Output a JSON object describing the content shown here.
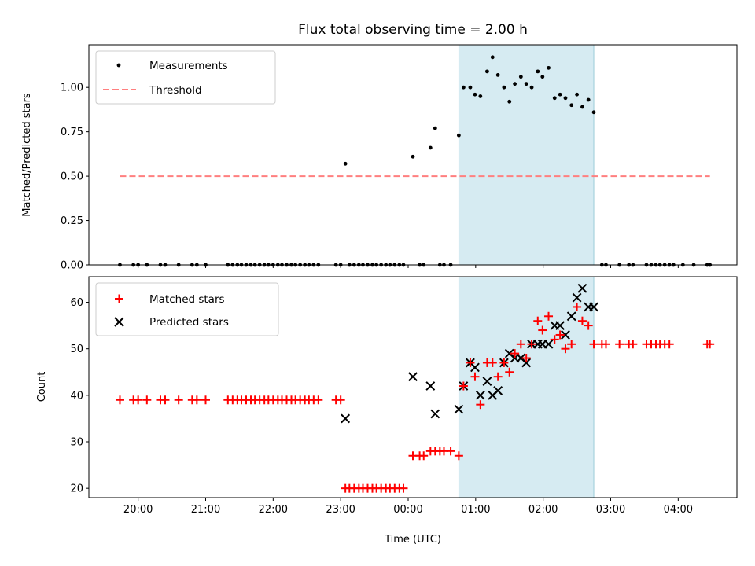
{
  "chart_data": [
    {
      "type": "scatter",
      "title": "Flux total observing time = 2.00 h",
      "ylabel": "Matched/Predicted stars",
      "xlabel": "",
      "x_unit": "hours since 00:00 UTC",
      "xlim": [
        -4.73,
        4.87
      ],
      "ylim": [
        0.0,
        1.24
      ],
      "yticks": [
        0.0,
        0.25,
        0.5,
        0.75,
        1.0
      ],
      "ytick_labels": [
        "0.00",
        "0.25",
        "0.50",
        "0.75",
        "1.00"
      ],
      "legend_position": "upper-left",
      "highlight_span": [
        0.75,
        2.75
      ],
      "highlight_color": "#add8e6",
      "series": [
        {
          "name": "Measurements",
          "marker": "dot",
          "color": "#000000",
          "points": [
            [
              -4.27,
              0.0
            ],
            [
              -4.07,
              0.0
            ],
            [
              -4.0,
              0.0
            ],
            [
              -3.87,
              0.0
            ],
            [
              -3.67,
              0.0
            ],
            [
              -3.6,
              0.0
            ],
            [
              -3.4,
              0.0
            ],
            [
              -3.2,
              0.0
            ],
            [
              -3.13,
              0.0
            ],
            [
              -3.0,
              0.0
            ],
            [
              -2.67,
              0.0
            ],
            [
              -2.6,
              0.0
            ],
            [
              -2.53,
              0.0
            ],
            [
              -2.47,
              0.0
            ],
            [
              -2.4,
              0.0
            ],
            [
              -2.33,
              0.0
            ],
            [
              -2.27,
              0.0
            ],
            [
              -2.2,
              0.0
            ],
            [
              -2.13,
              0.0
            ],
            [
              -2.07,
              0.0
            ],
            [
              -2.0,
              0.0
            ],
            [
              -1.93,
              0.0
            ],
            [
              -1.87,
              0.0
            ],
            [
              -1.8,
              0.0
            ],
            [
              -1.73,
              0.0
            ],
            [
              -1.67,
              0.0
            ],
            [
              -1.6,
              0.0
            ],
            [
              -1.53,
              0.0
            ],
            [
              -1.47,
              0.0
            ],
            [
              -1.4,
              0.0
            ],
            [
              -1.33,
              0.0
            ],
            [
              -1.07,
              0.0
            ],
            [
              -1.0,
              0.0
            ],
            [
              -0.93,
              0.57
            ],
            [
              -0.87,
              0.0
            ],
            [
              -0.8,
              0.0
            ],
            [
              -0.73,
              0.0
            ],
            [
              -0.67,
              0.0
            ],
            [
              -0.6,
              0.0
            ],
            [
              -0.53,
              0.0
            ],
            [
              -0.47,
              0.0
            ],
            [
              -0.4,
              0.0
            ],
            [
              -0.33,
              0.0
            ],
            [
              -0.27,
              0.0
            ],
            [
              -0.2,
              0.0
            ],
            [
              -0.13,
              0.0
            ],
            [
              -0.07,
              0.0
            ],
            [
              0.07,
              0.61
            ],
            [
              0.17,
              0.0
            ],
            [
              0.23,
              0.0
            ],
            [
              0.33,
              0.66
            ],
            [
              0.4,
              0.77
            ],
            [
              0.47,
              0.0
            ],
            [
              0.53,
              0.0
            ],
            [
              0.63,
              0.0
            ],
            [
              0.75,
              0.73
            ],
            [
              0.82,
              1.0
            ],
            [
              0.92,
              1.0
            ],
            [
              0.99,
              0.96
            ],
            [
              1.07,
              0.95
            ],
            [
              1.17,
              1.09
            ],
            [
              1.25,
              1.17
            ],
            [
              1.33,
              1.07
            ],
            [
              1.42,
              1.0
            ],
            [
              1.5,
              0.92
            ],
            [
              1.58,
              1.02
            ],
            [
              1.67,
              1.06
            ],
            [
              1.75,
              1.02
            ],
            [
              1.83,
              1.0
            ],
            [
              1.92,
              1.09
            ],
            [
              1.99,
              1.06
            ],
            [
              2.08,
              1.11
            ],
            [
              2.17,
              0.94
            ],
            [
              2.25,
              0.96
            ],
            [
              2.33,
              0.94
            ],
            [
              2.42,
              0.9
            ],
            [
              2.5,
              0.96
            ],
            [
              2.58,
              0.89
            ],
            [
              2.67,
              0.93
            ],
            [
              2.75,
              0.86
            ],
            [
              2.87,
              0.0
            ],
            [
              2.93,
              0.0
            ],
            [
              3.13,
              0.0
            ],
            [
              3.27,
              0.0
            ],
            [
              3.33,
              0.0
            ],
            [
              3.53,
              0.0
            ],
            [
              3.6,
              0.0
            ],
            [
              3.67,
              0.0
            ],
            [
              3.73,
              0.0
            ],
            [
              3.8,
              0.0
            ],
            [
              3.87,
              0.0
            ],
            [
              3.93,
              0.0
            ],
            [
              4.07,
              0.0
            ],
            [
              4.23,
              0.0
            ],
            [
              4.43,
              0.0
            ],
            [
              4.47,
              0.0
            ]
          ]
        },
        {
          "name": "Threshold",
          "marker": "dashed-line",
          "color": "#ff7f7f",
          "points": [
            [
              -4.27,
              0.5
            ],
            [
              4.47,
              0.5
            ]
          ]
        }
      ]
    },
    {
      "type": "scatter",
      "title": "",
      "ylabel": "Count",
      "xlabel": "Time (UTC)",
      "x_unit": "hours since 00:00 UTC",
      "xlim": [
        -4.73,
        4.87
      ],
      "ylim": [
        18.0,
        65.5
      ],
      "yticks": [
        20,
        30,
        40,
        50,
        60
      ],
      "ytick_labels": [
        "20",
        "30",
        "40",
        "50",
        "60"
      ],
      "xticks": [
        -4,
        -3,
        -2,
        -1,
        0,
        1,
        2,
        3,
        4
      ],
      "xtick_labels": [
        "20:00",
        "21:00",
        "22:00",
        "23:00",
        "00:00",
        "01:00",
        "02:00",
        "03:00",
        "04:00"
      ],
      "legend_position": "upper-left",
      "highlight_span": [
        0.75,
        2.75
      ],
      "highlight_color": "#add8e6",
      "series": [
        {
          "name": "Matched stars",
          "marker": "plus",
          "color": "#ff0000",
          "points": [
            [
              -4.27,
              39
            ],
            [
              -4.07,
              39
            ],
            [
              -4.0,
              39
            ],
            [
              -3.87,
              39
            ],
            [
              -3.67,
              39
            ],
            [
              -3.6,
              39
            ],
            [
              -3.4,
              39
            ],
            [
              -3.2,
              39
            ],
            [
              -3.13,
              39
            ],
            [
              -3.0,
              39
            ],
            [
              -2.67,
              39
            ],
            [
              -2.6,
              39
            ],
            [
              -2.53,
              39
            ],
            [
              -2.47,
              39
            ],
            [
              -2.4,
              39
            ],
            [
              -2.33,
              39
            ],
            [
              -2.27,
              39
            ],
            [
              -2.2,
              39
            ],
            [
              -2.13,
              39
            ],
            [
              -2.07,
              39
            ],
            [
              -2.0,
              39
            ],
            [
              -1.93,
              39
            ],
            [
              -1.87,
              39
            ],
            [
              -1.8,
              39
            ],
            [
              -1.73,
              39
            ],
            [
              -1.67,
              39
            ],
            [
              -1.6,
              39
            ],
            [
              -1.53,
              39
            ],
            [
              -1.47,
              39
            ],
            [
              -1.4,
              39
            ],
            [
              -1.33,
              39
            ],
            [
              -1.07,
              39
            ],
            [
              -1.0,
              39
            ],
            [
              -0.93,
              20
            ],
            [
              -0.87,
              20
            ],
            [
              -0.8,
              20
            ],
            [
              -0.73,
              20
            ],
            [
              -0.67,
              20
            ],
            [
              -0.6,
              20
            ],
            [
              -0.53,
              20
            ],
            [
              -0.47,
              20
            ],
            [
              -0.4,
              20
            ],
            [
              -0.33,
              20
            ],
            [
              -0.27,
              20
            ],
            [
              -0.2,
              20
            ],
            [
              -0.13,
              20
            ],
            [
              -0.07,
              20
            ],
            [
              0.07,
              27
            ],
            [
              0.17,
              27
            ],
            [
              0.23,
              27
            ],
            [
              0.33,
              28
            ],
            [
              0.4,
              28
            ],
            [
              0.47,
              28
            ],
            [
              0.53,
              28
            ],
            [
              0.63,
              28
            ],
            [
              0.75,
              27
            ],
            [
              0.82,
              42
            ],
            [
              0.92,
              47
            ],
            [
              0.99,
              44
            ],
            [
              1.07,
              38
            ],
            [
              1.17,
              47
            ],
            [
              1.25,
              47
            ],
            [
              1.33,
              44
            ],
            [
              1.42,
              47
            ],
            [
              1.5,
              45
            ],
            [
              1.58,
              49
            ],
            [
              1.67,
              51
            ],
            [
              1.75,
              48
            ],
            [
              1.83,
              51
            ],
            [
              1.92,
              56
            ],
            [
              1.99,
              54
            ],
            [
              2.08,
              57
            ],
            [
              2.17,
              52
            ],
            [
              2.25,
              53
            ],
            [
              2.33,
              50
            ],
            [
              2.42,
              51
            ],
            [
              2.5,
              59
            ],
            [
              2.58,
              56
            ],
            [
              2.67,
              55
            ],
            [
              2.75,
              51
            ],
            [
              2.87,
              51
            ],
            [
              2.93,
              51
            ],
            [
              3.13,
              51
            ],
            [
              3.27,
              51
            ],
            [
              3.33,
              51
            ],
            [
              3.53,
              51
            ],
            [
              3.6,
              51
            ],
            [
              3.67,
              51
            ],
            [
              3.73,
              51
            ],
            [
              3.8,
              51
            ],
            [
              3.87,
              51
            ],
            [
              4.43,
              51
            ],
            [
              4.47,
              51
            ]
          ]
        },
        {
          "name": "Predicted stars",
          "marker": "x",
          "color": "#000000",
          "points": [
            [
              -0.93,
              35
            ],
            [
              0.07,
              44
            ],
            [
              0.33,
              42
            ],
            [
              0.4,
              36
            ],
            [
              0.75,
              37
            ],
            [
              0.82,
              42
            ],
            [
              0.92,
              47
            ],
            [
              0.99,
              46
            ],
            [
              1.07,
              40
            ],
            [
              1.17,
              43
            ],
            [
              1.25,
              40
            ],
            [
              1.33,
              41
            ],
            [
              1.42,
              47
            ],
            [
              1.5,
              49
            ],
            [
              1.58,
              48
            ],
            [
              1.67,
              48
            ],
            [
              1.75,
              47
            ],
            [
              1.83,
              51
            ],
            [
              1.92,
              51
            ],
            [
              1.99,
              51
            ],
            [
              2.08,
              51
            ],
            [
              2.17,
              55
            ],
            [
              2.25,
              55
            ],
            [
              2.33,
              53
            ],
            [
              2.42,
              57
            ],
            [
              2.5,
              61
            ],
            [
              2.58,
              63
            ],
            [
              2.67,
              59
            ],
            [
              2.75,
              59
            ]
          ]
        }
      ]
    }
  ]
}
